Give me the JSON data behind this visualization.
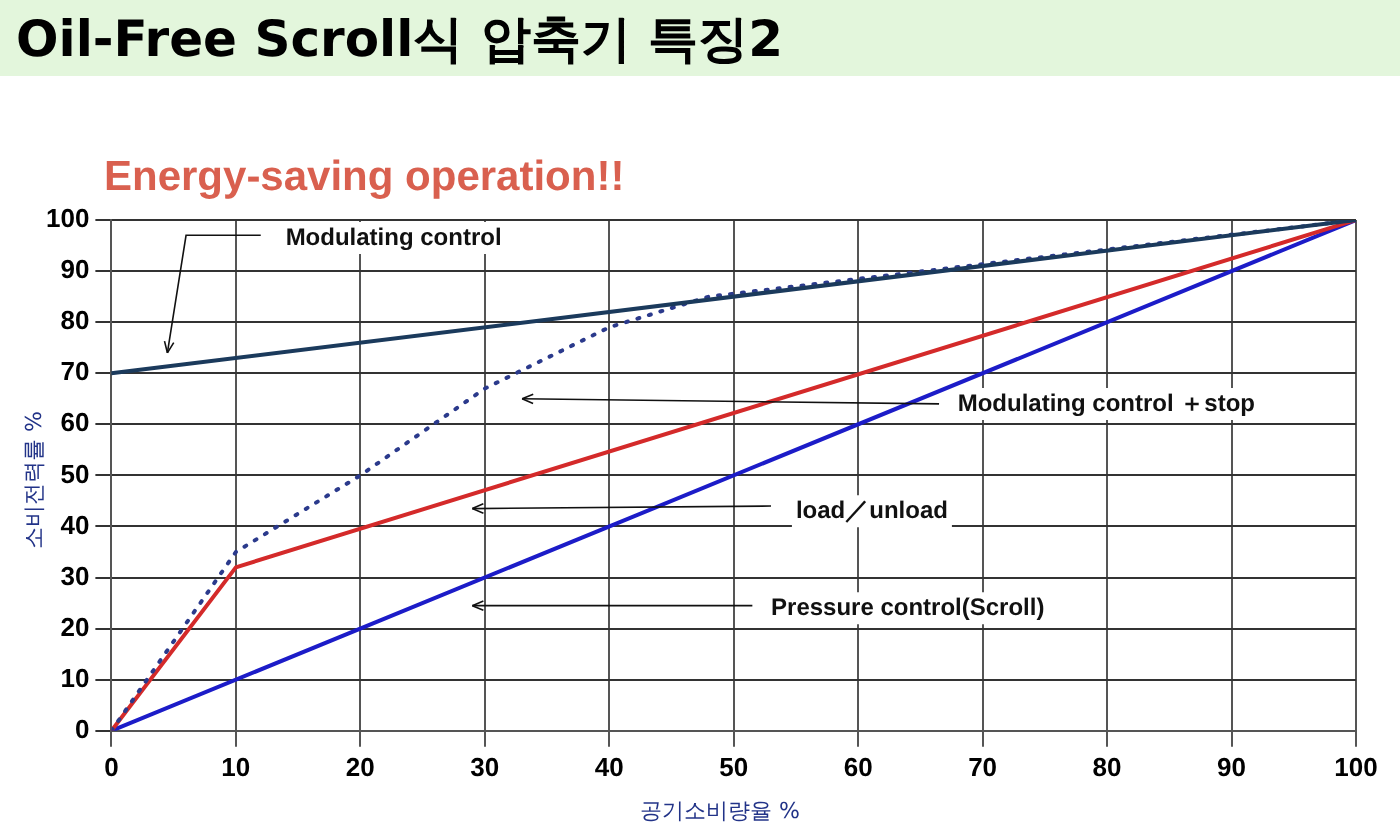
{
  "chart_data": {
    "type": "line",
    "title": "Oil-Free Scroll식 압축기 특징2",
    "subtitle": "Energy-saving operation!!",
    "xlabel": "공기소비량율 %",
    "ylabel": "소비전력률 %",
    "xlim": [
      0,
      100
    ],
    "ylim": [
      0,
      100
    ],
    "xticks": [
      0,
      10,
      20,
      30,
      40,
      50,
      60,
      70,
      80,
      90,
      100
    ],
    "yticks": [
      0,
      10,
      20,
      30,
      40,
      50,
      60,
      70,
      80,
      90,
      100
    ],
    "grid": true,
    "legend": false,
    "marker": "none",
    "series": [
      {
        "color": "#1b3a5c",
        "x": [
          0,
          100
        ],
        "values": [
          70,
          100
        ]
      },
      {
        "color": "#2b3a8c",
        "line_style": "dotted",
        "x": [
          0,
          10,
          20,
          30,
          40,
          48,
          100
        ],
        "values": [
          0,
          35,
          50,
          67,
          79,
          85,
          100
        ]
      },
      {
        "color": "#d42a2a",
        "x": [
          0,
          10,
          100
        ],
        "values": [
          0,
          32,
          100
        ]
      },
      {
        "color": "#1c1cc8",
        "x": [
          0,
          100
        ],
        "values": [
          0,
          100
        ]
      }
    ],
    "annotations": [
      "Modulating control",
      "Modulating control ＋stop",
      "load／unload",
      "Pressure control(Scroll)"
    ]
  }
}
